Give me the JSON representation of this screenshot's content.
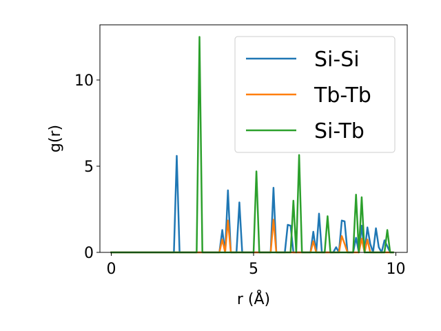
{
  "chart_data": {
    "type": "line",
    "title": "",
    "xlabel": "r (Å)",
    "ylabel": "g(r)",
    "xlim": [
      -0.4,
      10.4
    ],
    "ylim": [
      0,
      13.2
    ],
    "xticks": [
      0,
      5,
      10
    ],
    "yticks": [
      0,
      5,
      10
    ],
    "grid": false,
    "legend_position": "top-right",
    "series": [
      {
        "name": "Si-Si",
        "color": "#1f77b4",
        "x": [
          0,
          2.2,
          2.3,
          2.4,
          3.8,
          3.9,
          4.0,
          4.1,
          4.2,
          4.4,
          4.5,
          4.6,
          5.6,
          5.7,
          5.8,
          6.1,
          6.2,
          6.3,
          6.4,
          7.0,
          7.1,
          7.2,
          7.3,
          7.4,
          7.5,
          7.8,
          7.9,
          8.0,
          8.1,
          8.2,
          8.3,
          8.4,
          8.5,
          8.6,
          8.7,
          8.8,
          8.9,
          9.0,
          9.1,
          9.2,
          9.3,
          9.4,
          9.5,
          9.6,
          9.8,
          9.9
        ],
        "y": [
          0,
          0,
          5.6,
          0,
          0,
          1.3,
          0,
          3.6,
          0,
          0,
          2.9,
          0,
          0,
          3.75,
          0,
          0,
          1.6,
          1.55,
          0,
          0,
          1.2,
          0,
          2.25,
          0,
          0,
          0,
          0.3,
          0,
          1.85,
          1.8,
          0,
          0,
          0,
          0.85,
          0,
          1.55,
          0,
          1.45,
          0.5,
          0,
          1.4,
          0.3,
          0,
          0.7,
          0,
          0
        ]
      },
      {
        "name": "Tb-Tb",
        "color": "#ff7f0e",
        "x": [
          0,
          3.8,
          3.9,
          4.0,
          4.1,
          4.2,
          5.6,
          5.7,
          5.8,
          7.0,
          7.1,
          7.2,
          8.0,
          8.1,
          8.2,
          8.3,
          8.7,
          8.8,
          8.9,
          9.0,
          9.1,
          9.9
        ],
        "y": [
          0,
          0,
          0.75,
          0,
          1.85,
          0,
          0,
          1.9,
          0,
          0,
          0.65,
          0,
          0,
          0.95,
          0.5,
          0,
          0,
          0.8,
          0,
          0.75,
          0,
          0
        ]
      },
      {
        "name": "Si-Tb",
        "color": "#2ca02c",
        "x": [
          0,
          3.0,
          3.1,
          3.2,
          5.0,
          5.1,
          5.2,
          6.3,
          6.4,
          6.5,
          6.6,
          6.7,
          7.5,
          7.6,
          7.7,
          8.5,
          8.6,
          8.7,
          8.8,
          8.9,
          9.6,
          9.7,
          9.8,
          9.9
        ],
        "y": [
          0,
          0,
          12.5,
          0,
          0,
          4.7,
          0,
          0,
          3.0,
          0,
          5.65,
          0,
          0,
          2.1,
          0,
          0,
          3.35,
          0,
          3.2,
          0,
          0,
          1.3,
          0,
          0
        ]
      }
    ]
  }
}
